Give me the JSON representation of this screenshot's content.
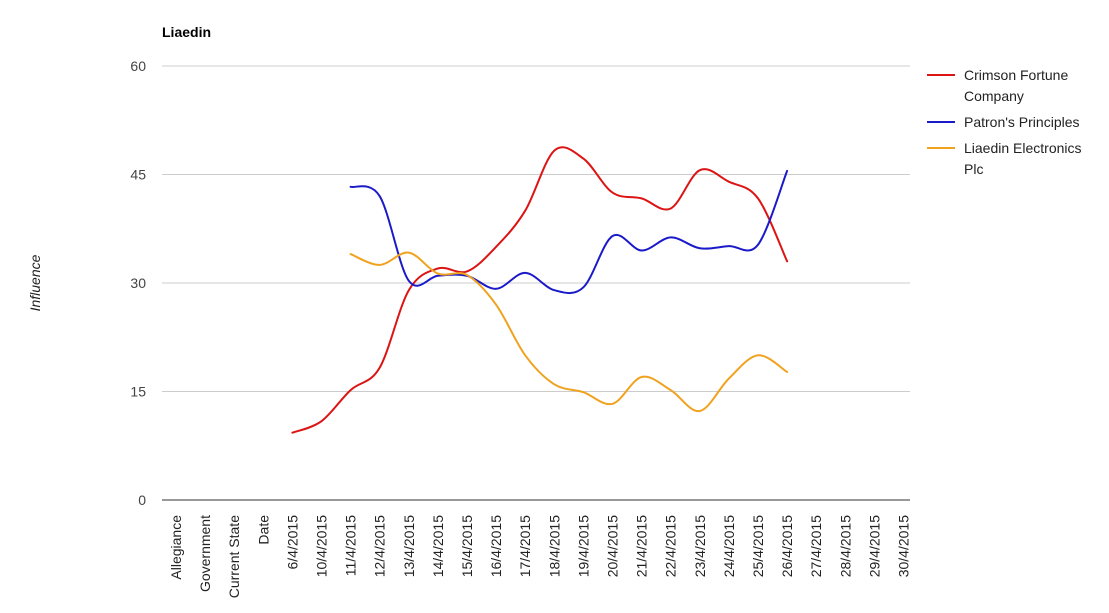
{
  "chart_data": {
    "type": "line",
    "title": "Liaedin",
    "xlabel": "",
    "ylabel": "Influence",
    "ylim": [
      0,
      60
    ],
    "yticks": [
      0,
      15,
      30,
      45,
      60
    ],
    "grid": true,
    "legend_position": "right",
    "categories": [
      "Allegiance",
      "Government",
      "Current State",
      "Date",
      "6/4/2015",
      "10/4/2015",
      "11/4/2015",
      "12/4/2015",
      "13/4/2015",
      "14/4/2015",
      "15/4/2015",
      "16/4/2015",
      "17/4/2015",
      "18/4/2015",
      "19/4/2015",
      "20/4/2015",
      "21/4/2015",
      "22/4/2015",
      "23/4/2015",
      "24/4/2015",
      "25/4/2015",
      "26/4/2015",
      "27/4/2015",
      "28/4/2015",
      "29/4/2015",
      "30/4/2015"
    ],
    "series": [
      {
        "name": "Crimson Fortune Company",
        "color": "#dc1414",
        "values": [
          null,
          null,
          null,
          null,
          9.3,
          10.9,
          15.2,
          18.3,
          29.0,
          32.0,
          31.6,
          35.0,
          40.0,
          48.3,
          47.2,
          42.5,
          41.7,
          40.3,
          45.6,
          44.0,
          41.7,
          33.0,
          null,
          null,
          null,
          null
        ]
      },
      {
        "name": "Patron's Principles",
        "color": "#1a1ac8",
        "values": [
          null,
          null,
          null,
          null,
          null,
          null,
          43.3,
          42.0,
          30.3,
          31.0,
          31.0,
          29.2,
          31.4,
          29.0,
          29.4,
          36.5,
          34.5,
          36.3,
          34.8,
          35.1,
          35.3,
          45.5,
          null,
          null,
          null,
          null
        ]
      },
      {
        "name": "Liaedin Electronics Plc",
        "color": "#f0a21e",
        "values": [
          null,
          null,
          null,
          null,
          null,
          null,
          34.0,
          32.5,
          34.2,
          31.3,
          31.1,
          27.0,
          20.0,
          16.0,
          14.9,
          13.3,
          17.0,
          15.2,
          12.3,
          16.8,
          20.0,
          17.7,
          null,
          null,
          null,
          null
        ]
      }
    ]
  },
  "legend": {
    "lines": [
      [
        "Crimson Fortune",
        "Company"
      ],
      [
        "Patron's Principles"
      ],
      [
        "Liaedin Electronics",
        "Plc"
      ]
    ]
  }
}
